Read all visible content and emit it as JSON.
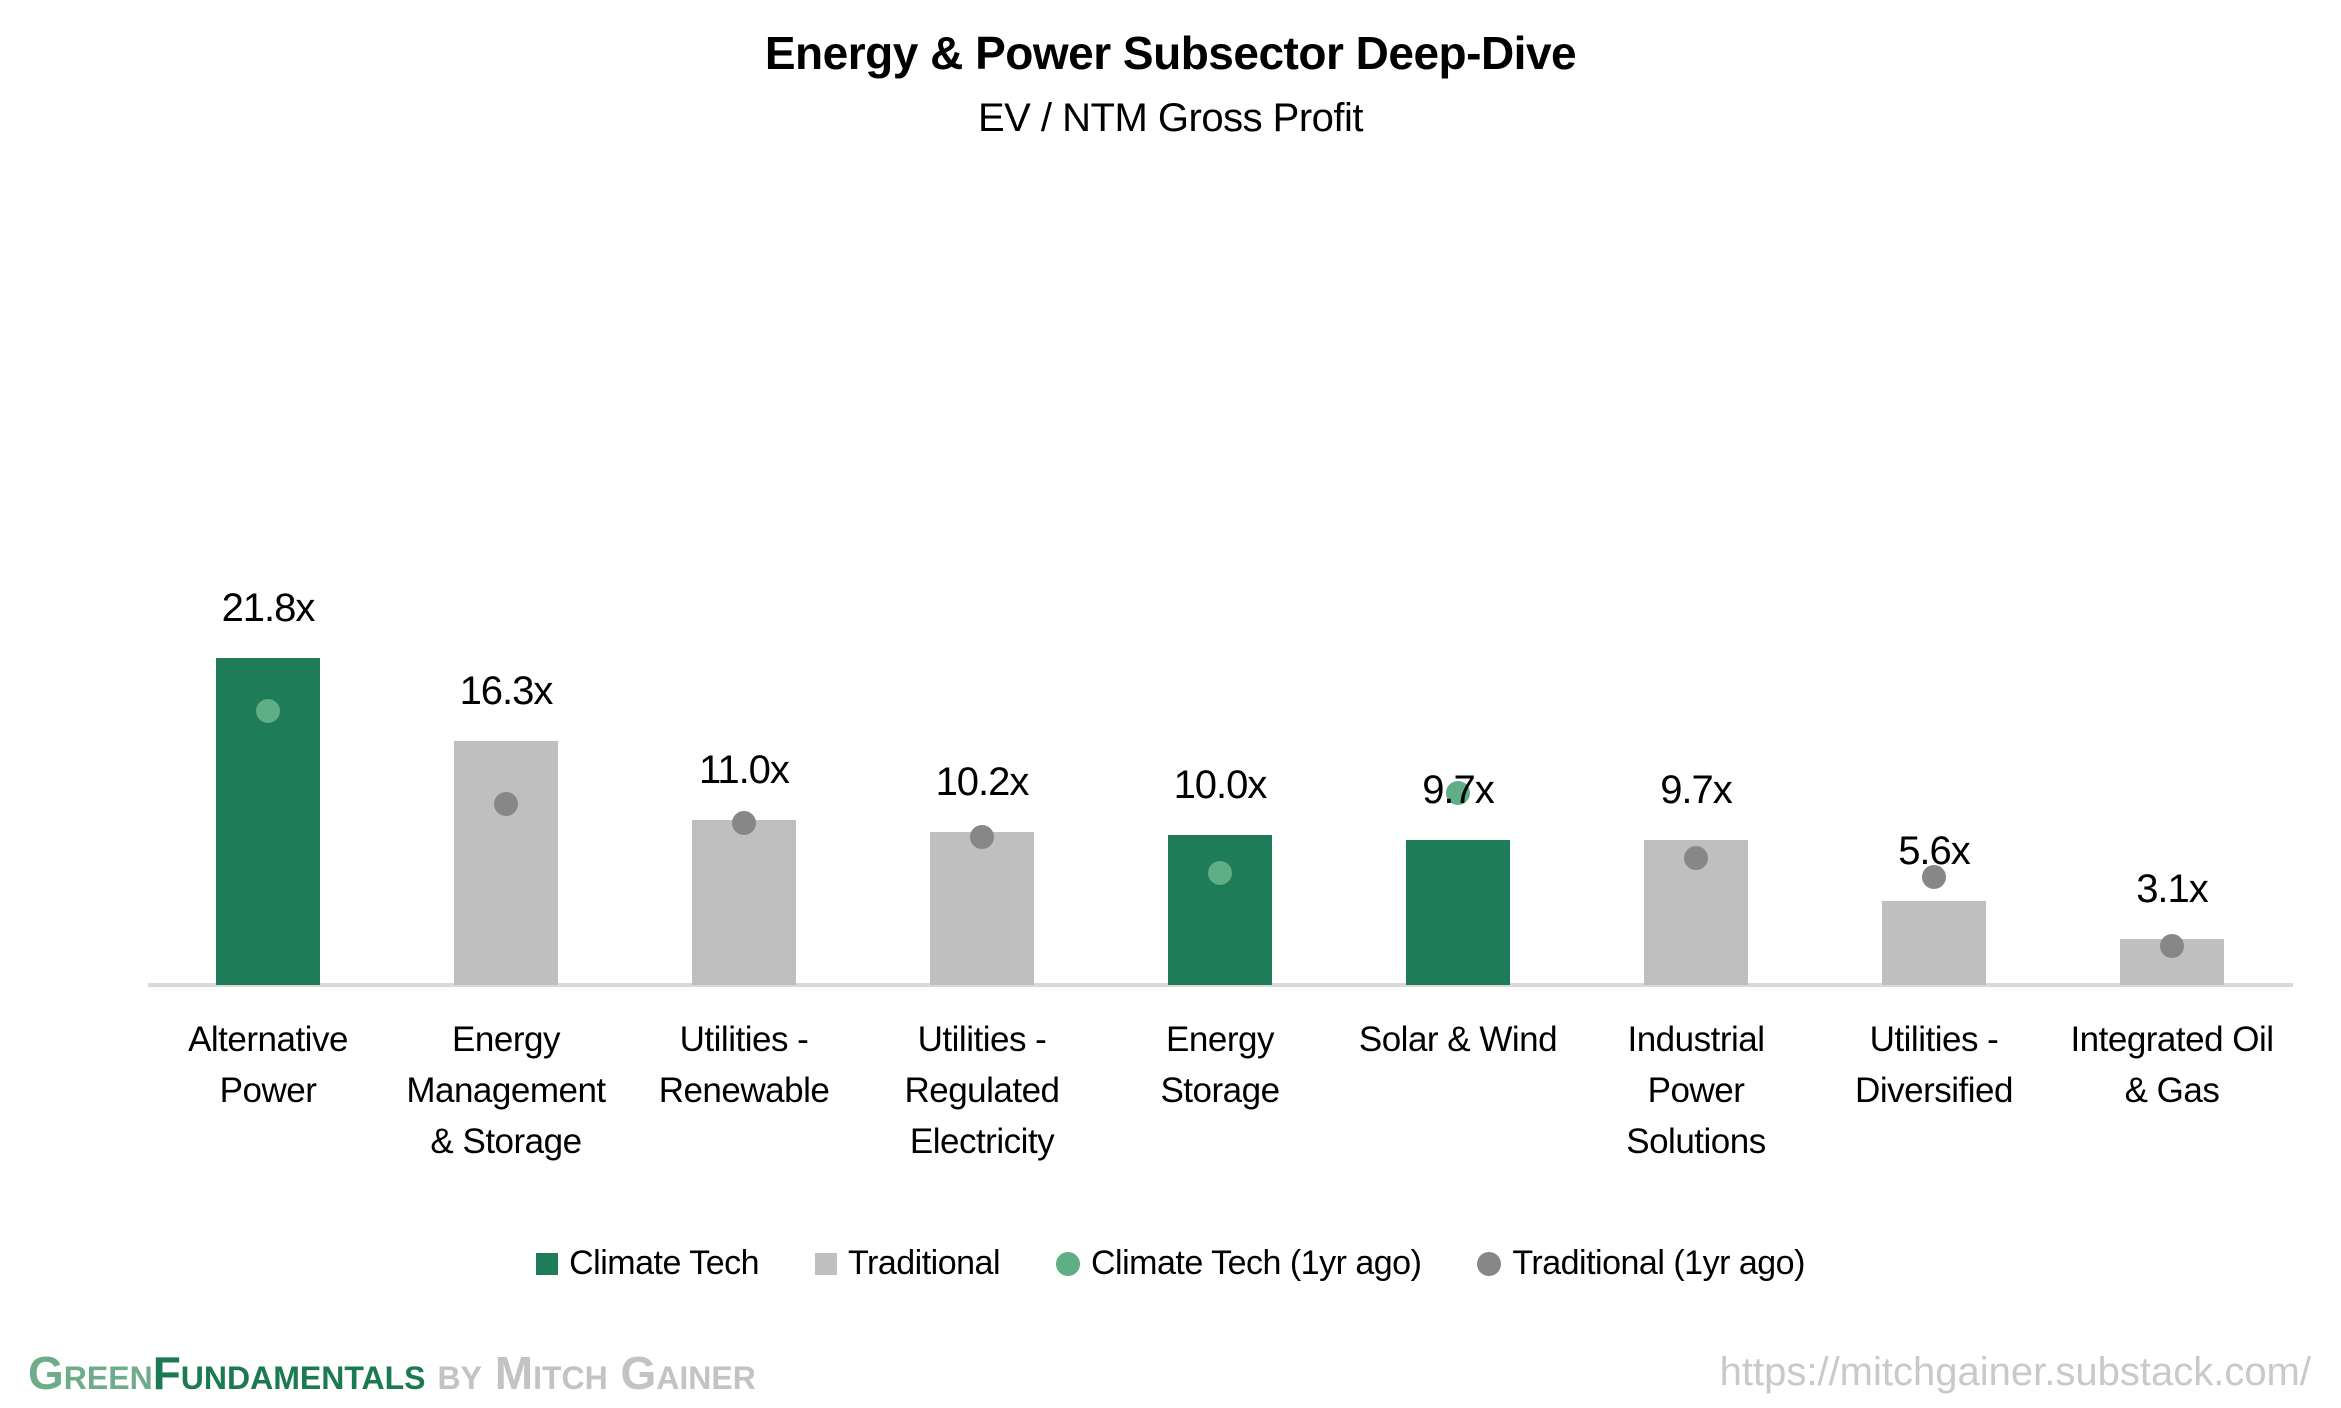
{
  "chart_data": {
    "type": "bar",
    "title": "Energy & Power Subsector Deep-Dive",
    "subtitle": "EV / NTM Gross Profit",
    "value_suffix": "x",
    "ylim": [
      0,
      23
    ],
    "grid": false,
    "legend_position": "bottom",
    "axis_line_color": "#d9d9d9",
    "categories": [
      "Alternative Power",
      "Energy Management & Storage",
      "Utilities - Renewable",
      "Utilities - Regulated Electricity",
      "Energy Storage",
      "Solar & Wind",
      "Industrial Power Solutions",
      "Utilities - Diversified",
      "Integrated Oil & Gas"
    ],
    "category_label_lines": [
      "Alternative\nPower",
      "Energy\nManagement\n& Storage",
      "Utilities -\nRenewable",
      "Utilities -\nRegulated\nElectricity",
      "Energy\nStorage",
      "Solar & Wind",
      "Industrial\nPower\nSolutions",
      "Utilities -\nDiversified",
      "Integrated Oil\n& Gas"
    ],
    "value_labels": [
      "21.8x",
      "16.3x",
      "11.0x",
      "10.2x",
      "10.0x",
      "9.7x",
      "9.7x",
      "5.6x",
      "3.1x"
    ],
    "series": [
      {
        "name": "Climate Tech",
        "kind": "bar",
        "color": "#1e7c58",
        "values": [
          21.8,
          null,
          null,
          null,
          10.0,
          9.7,
          null,
          null,
          null
        ]
      },
      {
        "name": "Traditional",
        "kind": "bar",
        "color": "#bfbfbf",
        "values": [
          null,
          16.3,
          11.0,
          10.2,
          null,
          null,
          9.7,
          5.6,
          3.1
        ]
      },
      {
        "name": "Climate Tech (1yr ago)",
        "kind": "dot",
        "color": "#5fae85",
        "values": [
          18.3,
          null,
          null,
          null,
          7.5,
          12.8,
          null,
          null,
          null
        ]
      },
      {
        "name": "Traditional (1yr ago)",
        "kind": "dot",
        "color": "#878787",
        "values": [
          null,
          12.1,
          10.8,
          9.9,
          null,
          null,
          8.5,
          7.2,
          2.6
        ]
      }
    ]
  },
  "footer": {
    "brand": {
      "part1": "Green",
      "part2": "Fundamentals",
      "part3": "by Mitch Gainer",
      "part1_color": "#6fac89",
      "part2_color": "#1c7a53",
      "part3_color": "#c3c3c3"
    },
    "url": "https://mitchgainer.substack.com/",
    "url_color": "#c9c9c9"
  }
}
